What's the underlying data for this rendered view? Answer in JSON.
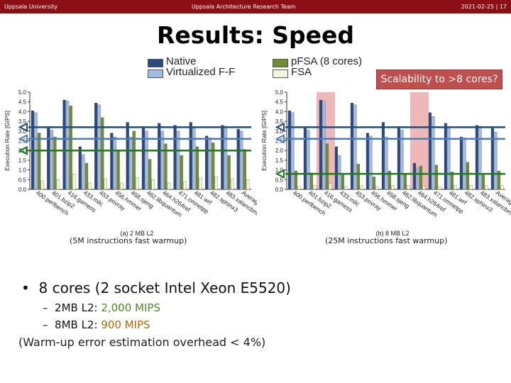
{
  "header": {
    "left": "Uppsala University",
    "center": "Uppsala Architecture Research Team",
    "right": "2021-02-25 | 17"
  },
  "slide_title": "Results: Speed",
  "legend": [
    {
      "label": "Native",
      "color": "#2a4a7f"
    },
    {
      "label": "Virtualized F-F",
      "color": "#9fbbe6"
    },
    {
      "label": "pFSA (8 cores)",
      "color": "#6f8f2e"
    },
    {
      "label": "FSA",
      "color": "#f3f5dc"
    }
  ],
  "callout": "Scalability to >8 cores?",
  "notes": {
    "left": "(5M instructions fast warmup)",
    "right": "(25M instructions fast warmup)"
  },
  "bullet": "8 cores (2 socket Intel Xeon E5520)",
  "subbullets": [
    {
      "prefix": "2MB L2: ",
      "value": "2,000 MIPS"
    },
    {
      "prefix": "8MB L2: ",
      "value": "900 MIPS"
    }
  ],
  "warmup_note": "(Warm-up error estimation overhead < 4%)",
  "chart_data": [
    {
      "type": "bar",
      "title": "",
      "xlabel": "(a) 2 MB L2",
      "ylabel": "Execution Rate [GIPS]",
      "ylim": [
        0,
        5
      ],
      "yticks": [
        0.0,
        0.5,
        1.0,
        1.5,
        2.0,
        2.5,
        3.0,
        3.5,
        4.0,
        4.5,
        5.0
      ],
      "grid": false,
      "categories": [
        "400.perlbench",
        "401.bzip2",
        "416.gamess",
        "433.milc",
        "453.povray",
        "456.hmmer",
        "458.sjeng",
        "462.libquantum",
        "464.h264ref",
        "471.omnetpp",
        "481.wrf",
        "482.sphinx3",
        "483.xalancbmk",
        "Average"
      ],
      "series": [
        {
          "name": "Native",
          "values": [
            4.05,
            3.2,
            4.6,
            2.2,
            4.45,
            2.9,
            3.45,
            3.15,
            3.4,
            3.3,
            3.45,
            2.75,
            3.3,
            3.1
          ]
        },
        {
          "name": "Virtualized F-F",
          "values": [
            3.95,
            3.05,
            4.55,
            1.8,
            4.35,
            2.7,
            2.7,
            3.0,
            3.0,
            3.0,
            3.15,
            2.65,
            3.25,
            3.0
          ]
        },
        {
          "name": "pFSA (8 cores)",
          "values": [
            2.9,
            2.7,
            4.3,
            1.35,
            3.7,
            2.0,
            3.0,
            1.55,
            2.35,
            1.75,
            2.2,
            2.4,
            1.75,
            2.05
          ]
        },
        {
          "name": "FSA",
          "values": [
            0.45,
            0.5,
            0.8,
            0.35,
            0.55,
            0.35,
            0.6,
            0.5,
            0.35,
            0.4,
            0.6,
            0.65,
            0.55,
            0.5
          ]
        }
      ],
      "reference_lines": [
        {
          "value": 3.2,
          "color": "#1f4e79"
        },
        {
          "value": 2.6,
          "color": "#4a7eb5"
        },
        {
          "value": 2.0,
          "color": "#1e7a1e"
        }
      ],
      "highlights": []
    },
    {
      "type": "bar",
      "title": "",
      "xlabel": "(b) 8 MB L2",
      "ylabel": "Execution Rate [GIPS]",
      "ylim": [
        0,
        5
      ],
      "yticks": [
        0.0,
        0.5,
        1.0,
        1.5,
        2.0,
        2.5,
        3.0,
        3.5,
        4.0,
        4.5,
        5.0
      ],
      "grid": false,
      "categories": [
        "400.perlbench",
        "401.bzip2",
        "416.gamess",
        "433.milc",
        "453.povray",
        "456.hmmer",
        "458.sjeng",
        "462.libquantum",
        "464.h264ref",
        "471.omnetpp",
        "481.wrf",
        "482.sphinx3",
        "483.xalancbmk",
        "Average"
      ],
      "series": [
        {
          "name": "Native",
          "values": [
            4.05,
            3.15,
            4.6,
            2.2,
            4.45,
            2.9,
            3.45,
            3.15,
            1.35,
            3.95,
            3.4,
            2.7,
            3.3,
            3.15
          ]
        },
        {
          "name": "Virtualized F-F",
          "values": [
            3.95,
            3.05,
            4.55,
            1.75,
            4.35,
            2.75,
            2.7,
            3.05,
            1.1,
            3.75,
            3.15,
            2.65,
            3.25,
            2.95
          ]
        },
        {
          "name": "pFSA (8 cores)",
          "values": [
            0.95,
            0.85,
            2.35,
            0.75,
            1.3,
            0.65,
            0.95,
            0.8,
            1.2,
            1.25,
            0.9,
            1.4,
            0.8,
            0.95
          ]
        },
        {
          "name": "FSA",
          "values": [
            0.15,
            0.2,
            0.3,
            0.15,
            0.2,
            0.15,
            0.2,
            0.2,
            0.15,
            0.15,
            0.2,
            0.2,
            0.2,
            0.2
          ]
        }
      ],
      "reference_lines": [
        {
          "value": 3.2,
          "color": "#1f4e79"
        },
        {
          "value": 2.6,
          "color": "#4a7eb5"
        },
        {
          "value": 0.8,
          "color": "#1e7a1e"
        }
      ],
      "highlights": [
        2,
        8
      ]
    }
  ]
}
